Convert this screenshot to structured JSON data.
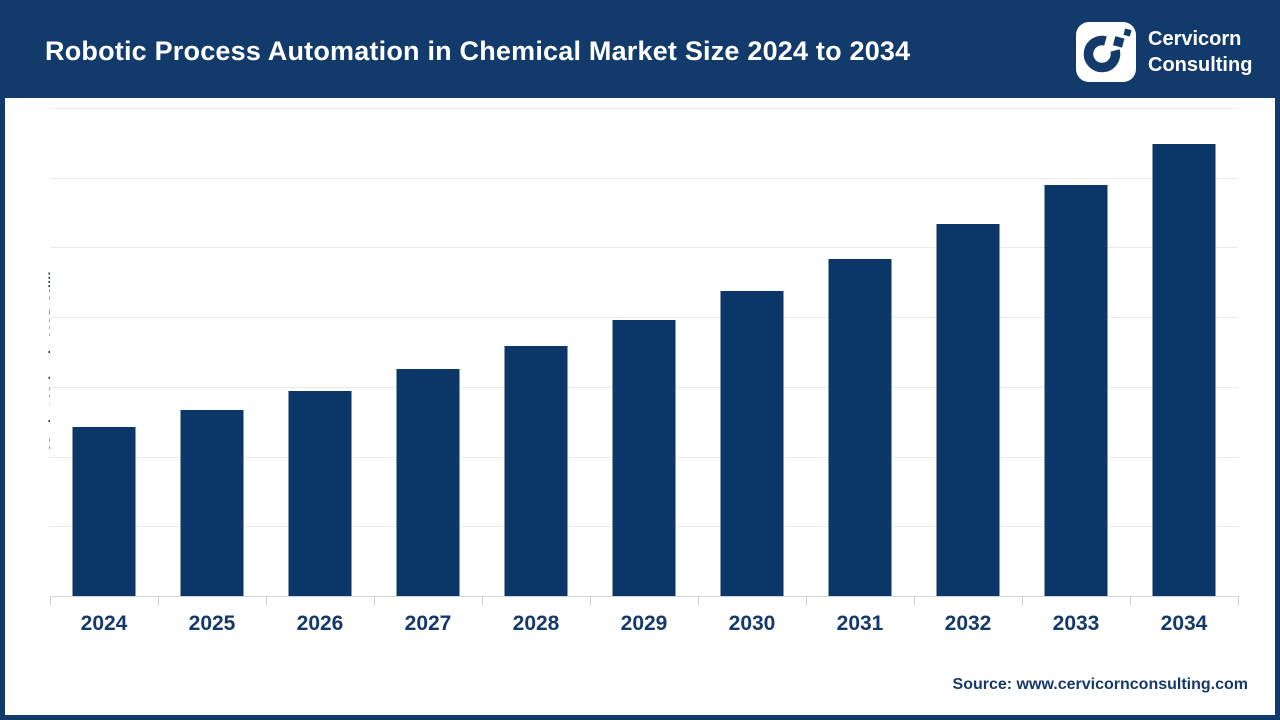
{
  "header": {
    "title": "Robotic Process Automation in Chemical Market Size 2024 to 2034",
    "brand_line1": "Cervicorn",
    "brand_line2": "Consulting",
    "logo_icon": "cervicorn-c-logo-icon"
  },
  "footer": {
    "source": "Source: www.cervicornconsulting.com"
  },
  "colors": {
    "navy": "#123A6B",
    "bar": "#0A3668",
    "label": "#16396B",
    "header_text": "#FFFFFF",
    "gridline": "#EAEAEA"
  },
  "chart_data": {
    "type": "bar",
    "title": "Robotic Process Automation in Chemical Market Size 2024 to 2034",
    "categories": [
      "2024",
      "2025",
      "2026",
      "2027",
      "2028",
      "2029",
      "2030",
      "2031",
      "2032",
      "2033",
      "2034"
    ],
    "values": [
      243,
      267,
      294,
      326,
      359,
      396,
      437,
      483,
      533,
      589,
      649
    ],
    "values_estimated": true,
    "xlabel": "",
    "ylabel": "Market Value in USD Million",
    "ylim": [
      0,
      700
    ],
    "grid_step": 100,
    "grid": "horizontal",
    "y_tick_labels_visible": false,
    "legend": "none"
  }
}
